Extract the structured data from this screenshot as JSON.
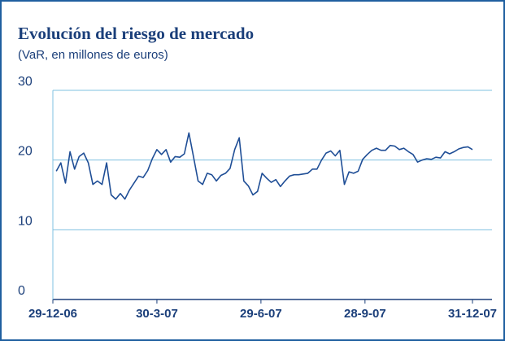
{
  "chart_data": {
    "type": "line",
    "title": "Evolución del riesgo de mercado",
    "subtitle": "(VaR, en millones de euros)",
    "x": [
      "2007-01-01",
      "2007-01-05",
      "2007-01-09",
      "2007-01-13",
      "2007-01-17",
      "2007-01-21",
      "2007-01-25",
      "2007-01-29",
      "2007-02-02",
      "2007-02-06",
      "2007-02-10",
      "2007-02-14",
      "2007-02-18",
      "2007-02-22",
      "2007-02-26",
      "2007-03-02",
      "2007-03-06",
      "2007-03-10",
      "2007-03-14",
      "2007-03-18",
      "2007-03-22",
      "2007-03-26",
      "2007-03-30",
      "2007-04-03",
      "2007-04-07",
      "2007-04-11",
      "2007-04-15",
      "2007-04-19",
      "2007-04-23",
      "2007-04-27",
      "2007-05-01",
      "2007-05-05",
      "2007-05-09",
      "2007-05-13",
      "2007-05-17",
      "2007-05-21",
      "2007-05-25",
      "2007-05-29",
      "2007-06-02",
      "2007-06-06",
      "2007-06-10",
      "2007-06-14",
      "2007-06-18",
      "2007-06-22",
      "2007-06-26",
      "2007-06-30",
      "2007-07-04",
      "2007-07-08",
      "2007-07-12",
      "2007-07-16",
      "2007-07-20",
      "2007-07-24",
      "2007-07-28",
      "2007-08-01",
      "2007-08-05",
      "2007-08-09",
      "2007-08-13",
      "2007-08-17",
      "2007-08-21",
      "2007-08-25",
      "2007-08-29",
      "2007-09-02",
      "2007-09-06",
      "2007-09-10",
      "2007-09-14",
      "2007-09-18",
      "2007-09-22",
      "2007-09-26",
      "2007-09-30",
      "2007-10-04",
      "2007-10-08",
      "2007-10-12",
      "2007-10-16",
      "2007-10-20",
      "2007-10-24",
      "2007-10-28",
      "2007-11-01",
      "2007-11-05",
      "2007-11-09",
      "2007-11-13",
      "2007-11-17",
      "2007-11-21",
      "2007-11-25",
      "2007-11-29",
      "2007-12-03",
      "2007-12-07",
      "2007-12-11",
      "2007-12-15",
      "2007-12-19",
      "2007-12-23",
      "2007-12-27",
      "2007-12-31"
    ],
    "series": [
      {
        "color": "#1f4e96",
        "values": [
          18.4,
          19.6,
          16.7,
          21.2,
          18.7,
          20.5,
          21,
          19.6,
          16.5,
          17,
          16.5,
          19.6,
          15,
          14.4,
          15.2,
          14.4,
          15.7,
          16.7,
          17.7,
          17.5,
          18.5,
          20.2,
          21.5,
          20.8,
          21.5,
          19.7,
          20.5,
          20.4,
          20.9,
          23.9,
          20.5,
          17,
          16.5,
          18.1,
          17.9,
          17,
          17.8,
          18.1,
          18.8,
          21.5,
          23.2,
          17,
          16.3,
          15,
          15.5,
          18.1,
          17.4,
          16.8,
          17.2,
          16.2,
          17,
          17.7,
          17.9,
          17.9,
          18,
          18.1,
          18.7,
          18.7,
          20,
          21,
          21.3,
          20.6,
          21.4,
          16.5,
          18.3,
          18.1,
          18.4,
          20.1,
          20.8,
          21.4,
          21.7,
          21.4,
          21.4,
          22.1,
          22,
          21.5,
          21.7,
          21.2,
          20.8,
          19.7,
          20,
          20.2,
          20.1,
          20.4,
          20.3,
          21.2,
          20.9,
          21.2,
          21.6,
          21.8,
          21.9,
          21.5
        ]
      }
    ],
    "xlim": [
      "2006-12-29",
      "2007-12-31"
    ],
    "xticks": [
      {
        "value": "2006-12-29",
        "label": "29-12-06"
      },
      {
        "value": "2007-03-30",
        "label": "30-3-07"
      },
      {
        "value": "2007-06-29",
        "label": "29-6-07"
      },
      {
        "value": "2007-09-28",
        "label": "28-9-07"
      },
      {
        "value": "2007-12-31",
        "label": "31-12-07"
      }
    ],
    "ylim": [
      0,
      30
    ],
    "yticks": [
      0,
      10,
      20,
      30
    ],
    "grid": true
  }
}
